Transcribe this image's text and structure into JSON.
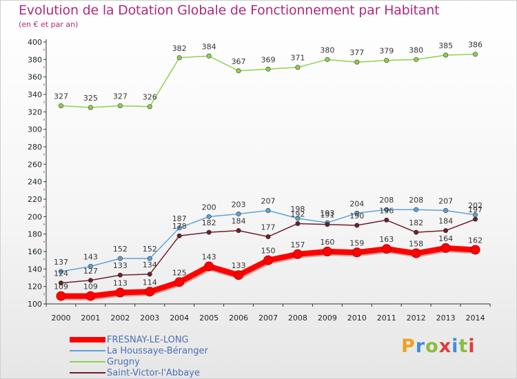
{
  "title": "Evolution de la Dotation Globale de Fonctionnement par Habitant",
  "subtitle": "(en € et par an)",
  "logo": {
    "text": "Proxiti",
    "colors": [
      "#f0a020",
      "#3c8fd8",
      "#8cbc3c",
      "#e03c3c",
      "#3c8fd8",
      "#8cbc3c",
      "#e03c3c"
    ]
  },
  "chart_data": {
    "type": "line",
    "title": "Evolution de la Dotation Globale de Fonctionnement par Habitant",
    "ylabel": "(en € et par an)",
    "xlabel": "",
    "categories": [
      "2000",
      "2001",
      "2002",
      "2003",
      "2004",
      "2005",
      "2006",
      "2007",
      "2008",
      "2009",
      "2010",
      "2011",
      "2012",
      "2013",
      "2014"
    ],
    "ylim": [
      100,
      400
    ],
    "yticks": [
      100,
      120,
      140,
      160,
      180,
      200,
      220,
      240,
      260,
      280,
      300,
      320,
      340,
      360,
      380,
      400
    ],
    "grid": false,
    "legend_position": "bottom-left",
    "series": [
      {
        "name": "FRESNAY-LE-LONG",
        "color": "#ff0000",
        "values": [
          109,
          109,
          113,
          114,
          125,
          143,
          133,
          150,
          157,
          160,
          159,
          163,
          158,
          164,
          162
        ],
        "labels": [
          "109",
          "109",
          "113",
          "114",
          "125",
          "143",
          "133",
          "150",
          "157",
          "160",
          "159",
          "163",
          "158",
          "164",
          "162"
        ]
      },
      {
        "name": "La Houssaye-Béranger",
        "color": "#5ba3d9",
        "values": [
          137,
          143,
          152,
          152,
          187,
          200,
          203,
          207,
          198,
          193,
          204,
          208,
          208,
          207,
          202
        ],
        "labels": [
          "137",
          "143",
          "152",
          "152",
          "187",
          "200",
          "203",
          "207",
          "198",
          "193",
          "204",
          "208",
          "208",
          "207",
          "202"
        ]
      },
      {
        "name": "Grugny",
        "color": "#8ed24c",
        "values": [
          327,
          325,
          327,
          326,
          382,
          384,
          367,
          369,
          371,
          380,
          377,
          379,
          380,
          385,
          386
        ],
        "labels": [
          "327",
          "325",
          "327",
          "326",
          "382",
          "384",
          "367",
          "369",
          "371",
          "380",
          "377",
          "379",
          "380",
          "385",
          "386"
        ]
      },
      {
        "name": "Saint-Victor-l'Abbaye",
        "color": "#6e1e2b",
        "values": [
          124,
          127,
          133,
          134,
          178,
          182,
          184,
          177,
          192,
          191,
          190,
          196,
          182,
          184,
          197
        ],
        "labels": [
          "124",
          "127",
          "133",
          "134",
          "178",
          "182",
          "184",
          "177",
          "192",
          "191",
          "190",
          "196",
          "182",
          "184",
          "197"
        ]
      }
    ]
  }
}
